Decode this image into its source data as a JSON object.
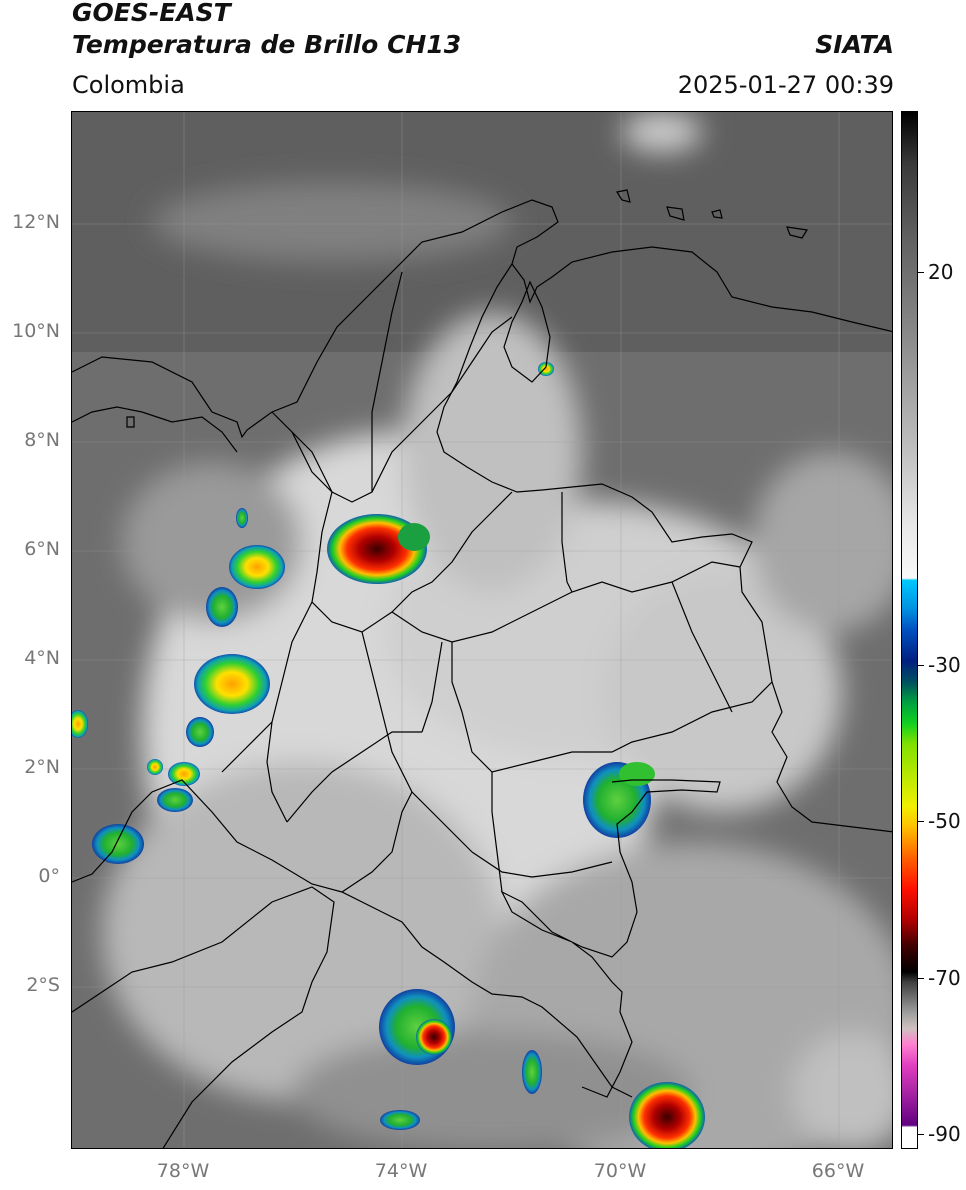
{
  "header": {
    "title_line1": "GOES-EAST",
    "title_line2": "Temperatura de Brillo CH13",
    "organization": "SIATA",
    "region": "Colombia",
    "datetime": "2025-01-27 00:39"
  },
  "map": {
    "lat_labels": [
      "12°N",
      "10°N",
      "8°N",
      "6°N",
      "4°N",
      "2°N",
      "0°",
      "2°S"
    ],
    "lon_labels": [
      "78°W",
      "74°W",
      "70°W",
      "66°W"
    ],
    "lon_range": [
      -80.0,
      -65.0
    ],
    "lat_range": [
      -5.0,
      14.0
    ],
    "gridlines": true
  },
  "colorbar": {
    "tick_labels": [
      "20",
      "-30",
      "-50",
      "-70",
      "-90"
    ]
  },
  "colors": {
    "background_gray": "#6b6b6b",
    "border": "#000000"
  }
}
